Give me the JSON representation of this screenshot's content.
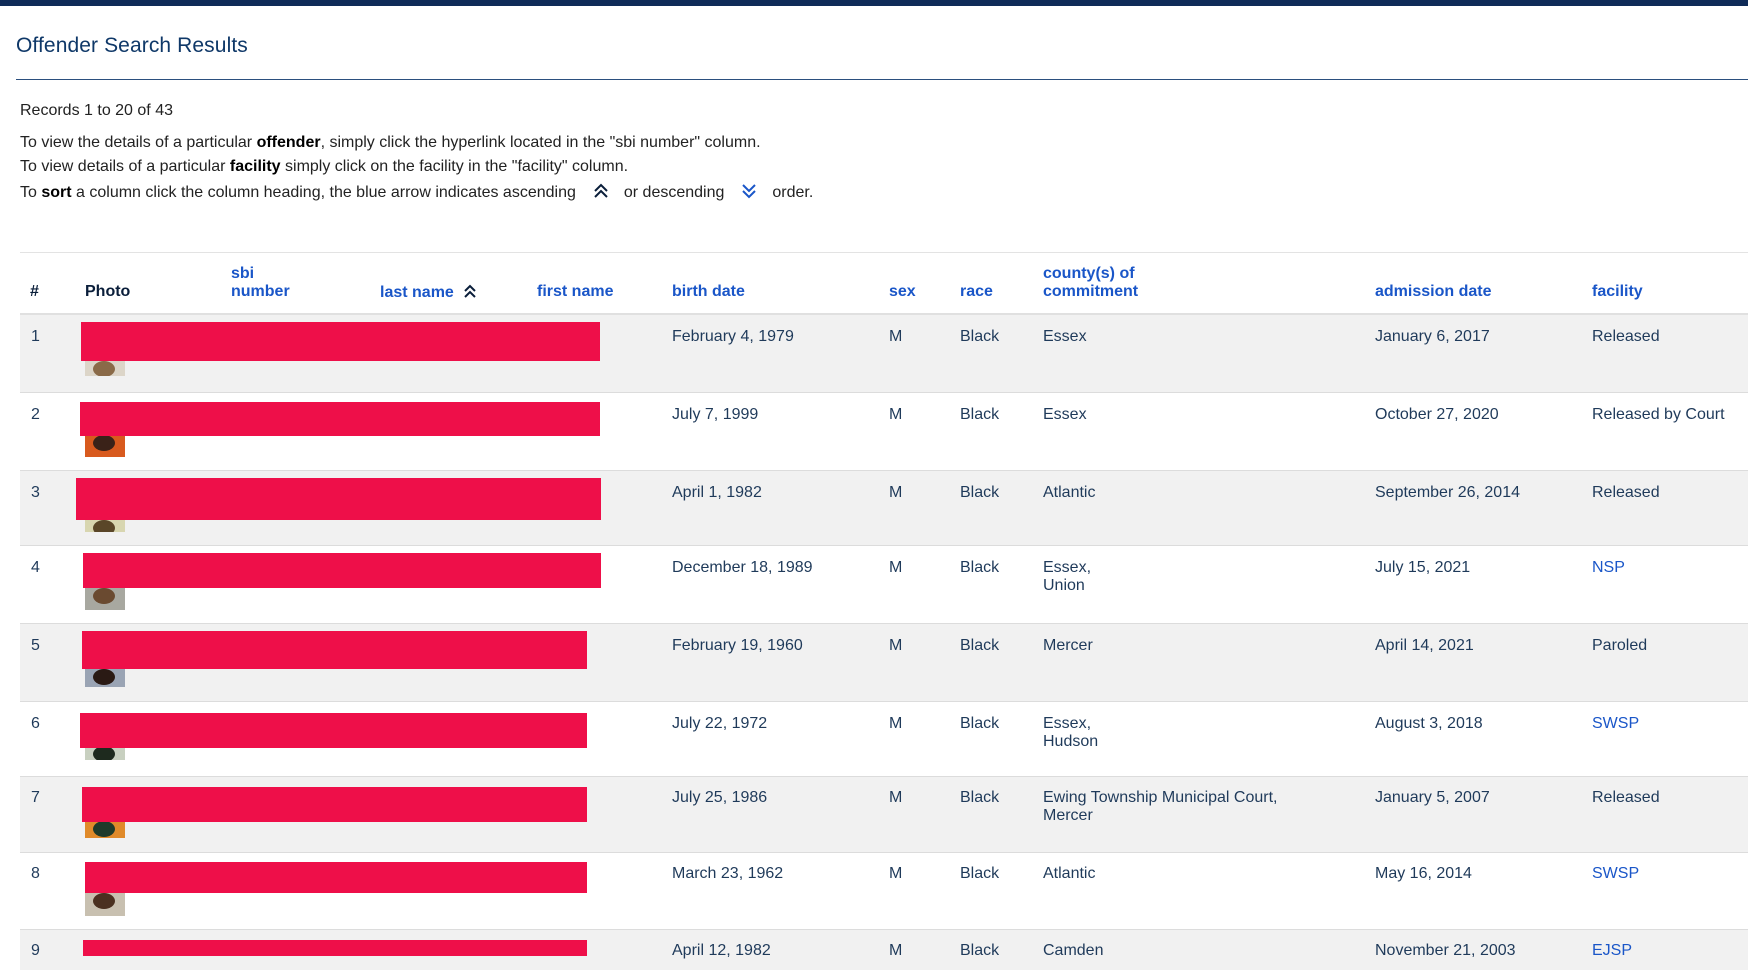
{
  "page": {
    "title": "Offender Search Results",
    "records": "Records 1 to 20 of 43",
    "line1": {
      "pre": "To view the details of a particular ",
      "bold": "offender",
      "post": ", simply click the hyperlink located in the \"sbi number\" column."
    },
    "line2": {
      "pre": "To view details of a particular ",
      "bold": "facility",
      "post": " simply click on the facility in the \"facility\" column."
    },
    "line3": {
      "pre": "To ",
      "bold": "sort",
      "post": " a column click the column heading, the blue arrow indicates ascending",
      "mid": "or descending",
      "end": "order."
    }
  },
  "columns": {
    "num": "#",
    "photo": "Photo",
    "sbi_1": "sbi",
    "sbi_2": "number",
    "last_name": "last name",
    "first_name": "first name",
    "birth_date": "birth date",
    "sex": "sex",
    "race": "race",
    "county_1": "county(s) of",
    "county_2": "commitment",
    "admission_date": "admission date",
    "facility": "facility"
  },
  "colors": {
    "accent": "#1a56c8",
    "title": "#0f3868",
    "top_bar": "#0f2b58",
    "redaction": "#ee0f49"
  },
  "icons": {
    "ascending": "double-chevron-up-icon",
    "descending": "double-chevron-down-icon"
  },
  "rows": [
    {
      "num": "1",
      "birth_date": "February 4, 1979",
      "sex": "M",
      "race": "Black",
      "county": [
        "Essex"
      ],
      "admission_date": "January 6, 2017",
      "facility": "Released",
      "facility_link": false
    },
    {
      "num": "2",
      "birth_date": "July 7, 1999",
      "sex": "M",
      "race": "Black",
      "county": [
        "Essex"
      ],
      "admission_date": "October 27, 2020",
      "facility": "Released by Court",
      "facility_link": false
    },
    {
      "num": "3",
      "birth_date": "April 1, 1982",
      "sex": "M",
      "race": "Black",
      "county": [
        "Atlantic"
      ],
      "admission_date": "September 26, 2014",
      "facility": "Released",
      "facility_link": false
    },
    {
      "num": "4",
      "birth_date": "December 18, 1989",
      "sex": "M",
      "race": "Black",
      "county": [
        "Essex,",
        "Union"
      ],
      "admission_date": "July 15, 2021",
      "facility": "NSP",
      "facility_link": true
    },
    {
      "num": "5",
      "birth_date": "February 19, 1960",
      "sex": "M",
      "race": "Black",
      "county": [
        "Mercer"
      ],
      "admission_date": "April 14, 2021",
      "facility": "Paroled",
      "facility_link": false
    },
    {
      "num": "6",
      "birth_date": "July 22, 1972",
      "sex": "M",
      "race": "Black",
      "county": [
        "Essex,",
        "Hudson"
      ],
      "admission_date": "August 3, 2018",
      "facility": "SWSP",
      "facility_link": true
    },
    {
      "num": "7",
      "birth_date": "July 25, 1986",
      "sex": "M",
      "race": "Black",
      "county": [
        "Ewing Township Municipal Court,",
        "Mercer"
      ],
      "admission_date": "January 5, 2007",
      "facility": "Released",
      "facility_link": false
    },
    {
      "num": "8",
      "birth_date": "March 23, 1962",
      "sex": "M",
      "race": "Black",
      "county": [
        "Atlantic"
      ],
      "admission_date": "May 16, 2014",
      "facility": "SWSP",
      "facility_link": true
    },
    {
      "num": "9",
      "birth_date": "April 12, 1982",
      "sex": "M",
      "race": "Black",
      "county": [
        "Camden"
      ],
      "admission_date": "November 21, 2003",
      "facility": "EJSP",
      "facility_link": true
    }
  ]
}
